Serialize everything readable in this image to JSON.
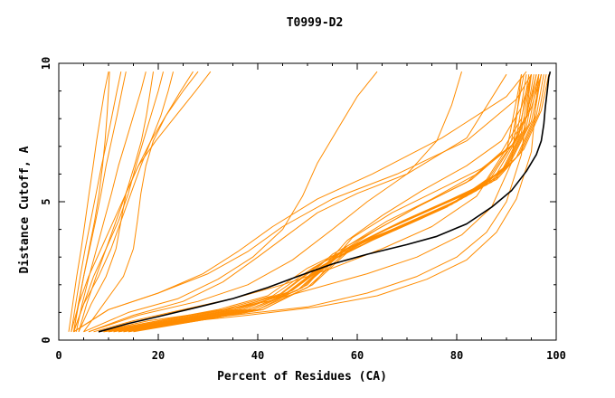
{
  "chart_data": {
    "type": "line",
    "title": "T0999-D2",
    "xlabel": "Percent of Residues (CA)",
    "ylabel": "Distance Cutoff, A",
    "xlim": [
      0,
      100
    ],
    "ylim": [
      0,
      10
    ],
    "x_ticks": [
      "0",
      "20",
      "40",
      "60",
      "80",
      "100"
    ],
    "y_ticks": [
      "0",
      "5",
      "10"
    ],
    "grid": false,
    "colors": {
      "models": "#ff8c00",
      "highlight": "#000000"
    },
    "highlight": {
      "x": [
        8,
        10,
        14,
        20,
        27,
        35,
        42,
        48,
        55,
        62,
        70,
        76,
        82,
        87,
        91,
        94,
        96,
        97,
        97.5,
        97.8,
        98.2,
        98.5,
        98.8
      ],
      "y": [
        0.3,
        0.4,
        0.6,
        0.85,
        1.15,
        1.5,
        1.9,
        2.3,
        2.75,
        3.1,
        3.45,
        3.75,
        4.2,
        4.8,
        5.4,
        6.1,
        6.7,
        7.2,
        7.8,
        8.4,
        9.0,
        9.5,
        9.7
      ]
    },
    "series": [
      {
        "x": [
          2,
          2.8,
          3.6,
          4.5,
          5.3,
          6.1,
          6.9,
          7.6,
          8.4,
          9.2,
          10.0
        ],
        "y": [
          0.3,
          1.3,
          2.3,
          3.3,
          4.3,
          5.3,
          6.3,
          7.2,
          8.1,
          9.0,
          9.7
        ]
      },
      {
        "x": [
          2.5,
          3.4,
          4.3,
          5.3,
          6.4,
          7.5,
          8.6,
          9.7,
          10.7,
          11.7,
          12.5
        ],
        "y": [
          0.3,
          1.3,
          2.3,
          3.3,
          4.3,
          5.3,
          6.3,
          7.2,
          8.1,
          9.0,
          9.7
        ]
      },
      {
        "x": [
          3,
          3.9,
          5.0,
          6.2,
          7.4,
          8.5,
          9.5,
          10.6,
          11.7,
          12.7,
          13.5
        ],
        "y": [
          0.3,
          1.3,
          2.3,
          3.3,
          4.3,
          5.3,
          6.3,
          7.2,
          8.1,
          9.0,
          9.7
        ]
      },
      {
        "x": [
          3.5,
          4.7,
          6.1,
          7.6,
          9.1,
          10.6,
          12.0,
          13.5,
          15.0,
          16.5,
          17.5
        ],
        "y": [
          0.3,
          1.3,
          2.3,
          3.3,
          4.3,
          5.3,
          6.3,
          7.2,
          8.1,
          9.0,
          9.7
        ]
      },
      {
        "x": [
          3,
          4.0,
          5.0,
          6.1,
          7.2,
          8.1,
          8.8,
          9.3,
          9.7,
          10.0,
          10.2
        ],
        "y": [
          0.3,
          1.3,
          2.3,
          3.3,
          4.3,
          5.3,
          6.3,
          7.2,
          8.1,
          9.0,
          9.7
        ]
      },
      {
        "x": [
          4,
          5.6,
          7.5,
          9.5,
          11.5,
          13.5,
          15.2,
          16.6,
          17.6,
          18.4,
          19.0
        ],
        "y": [
          0.3,
          1.3,
          2.3,
          3.3,
          4.3,
          5.3,
          6.3,
          7.2,
          8.1,
          9.0,
          9.7
        ]
      },
      {
        "x": [
          3,
          5.0,
          8.0,
          10.5,
          12.5,
          14.5,
          16.5,
          18.5,
          20.5,
          22.0,
          23.0
        ],
        "y": [
          0.3,
          1.3,
          2.3,
          3.3,
          4.3,
          5.3,
          6.3,
          7.2,
          8.1,
          9.0,
          9.7
        ]
      },
      {
        "x": [
          2.5,
          4.0,
          6.0,
          8.5,
          11.0,
          13.5,
          16.0,
          18.5,
          21.5,
          24.5,
          27.0
        ],
        "y": [
          0.3,
          1.3,
          2.3,
          3.3,
          4.3,
          5.3,
          6.3,
          7.2,
          8.1,
          9.0,
          9.7
        ]
      },
      {
        "x": [
          4,
          6.5,
          9.5,
          11.5,
          12.5,
          13.5,
          16.0,
          19.5,
          23.5,
          27.5,
          30.5
        ],
        "y": [
          0.3,
          1.3,
          2.3,
          3.3,
          4.3,
          5.3,
          6.3,
          7.2,
          8.1,
          9.0,
          9.7
        ]
      },
      {
        "x": [
          5,
          9.0,
          13.0,
          15.0,
          15.8,
          16.5,
          17.5,
          19.0,
          21.5,
          25.0,
          28.0
        ],
        "y": [
          0.3,
          1.3,
          2.3,
          3.3,
          4.3,
          5.3,
          6.3,
          7.2,
          8.1,
          9.0,
          9.7
        ]
      },
      {
        "x": [
          3,
          5.0,
          7.0,
          9.5,
          12.0,
          14.0,
          15.5,
          17.0,
          18.5,
          20.0,
          21.0
        ],
        "y": [
          0.3,
          1.3,
          2.3,
          3.3,
          4.3,
          5.3,
          6.3,
          7.2,
          8.1,
          9.0,
          9.7
        ]
      },
      {
        "x": [
          3,
          10,
          20,
          30,
          38,
          45,
          55,
          68,
          82,
          92,
          95
        ],
        "y": [
          0.3,
          1.1,
          1.7,
          2.4,
          3.2,
          4.1,
          5.1,
          6.0,
          7.2,
          8.7,
          9.6
        ]
      },
      {
        "x": [
          3,
          10,
          20,
          29,
          36,
          43,
          52,
          63,
          77,
          90,
          94
        ],
        "y": [
          0.3,
          1.1,
          1.7,
          2.4,
          3.2,
          4.1,
          5.1,
          6.0,
          7.3,
          8.8,
          9.7
        ]
      },
      {
        "x": [
          5,
          14,
          24,
          32,
          39,
          45,
          49,
          52,
          56,
          60,
          64
        ],
        "y": [
          0.3,
          1.0,
          1.5,
          2.2,
          3.0,
          4.0,
          5.2,
          6.4,
          7.6,
          8.8,
          9.7
        ]
      },
      {
        "x": [
          6,
          16,
          28,
          38,
          47,
          55,
          62,
          70,
          76,
          79,
          81
        ],
        "y": [
          0.3,
          0.9,
          1.4,
          2.0,
          2.9,
          4.0,
          5.0,
          6.0,
          7.2,
          8.5,
          9.7
        ]
      },
      {
        "x": [
          6,
          15,
          25,
          33,
          40,
          46,
          52,
          60,
          70,
          82,
          90
        ],
        "y": [
          0.3,
          0.9,
          1.4,
          2.1,
          3.0,
          3.8,
          4.6,
          5.3,
          6.0,
          7.3,
          9.6
        ]
      },
      {
        "x": [
          7,
          15,
          25,
          35,
          45,
          55,
          65,
          75,
          84,
          90,
          93
        ],
        "y": [
          0.3,
          0.7,
          1.1,
          1.5,
          2.0,
          2.6,
          3.3,
          4.1,
          5.2,
          6.8,
          9.6
        ]
      },
      {
        "x": [
          8,
          18,
          30,
          42,
          52,
          62,
          72,
          81,
          87,
          91,
          93
        ],
        "y": [
          0.3,
          0.7,
          1.0,
          1.4,
          1.9,
          2.4,
          3.0,
          3.8,
          4.8,
          6.4,
          9.6
        ]
      },
      {
        "x": [
          8,
          20,
          35,
          50,
          62,
          72,
          80,
          86,
          90,
          93,
          95
        ],
        "y": [
          0.3,
          0.6,
          0.9,
          1.2,
          1.7,
          2.3,
          3.0,
          3.9,
          5.0,
          6.7,
          9.6
        ]
      },
      {
        "x": [
          9,
          22,
          38,
          52,
          64,
          74,
          82,
          88,
          92,
          95,
          96.5
        ],
        "y": [
          0.3,
          0.6,
          0.9,
          1.2,
          1.6,
          2.2,
          2.9,
          3.9,
          5.1,
          6.8,
          9.6
        ]
      },
      {
        "x": [
          8,
          20,
          32,
          42,
          50,
          58,
          68,
          78,
          86,
          91,
          93.5
        ],
        "y": [
          0.3,
          0.7,
          1.1,
          1.6,
          2.6,
          3.3,
          4.0,
          4.8,
          5.8,
          7.2,
          9.6
        ]
      },
      {
        "x": [
          8,
          20,
          33,
          43,
          51,
          59,
          69,
          79,
          87,
          92,
          94
        ],
        "y": [
          0.3,
          0.7,
          1.1,
          1.6,
          2.6,
          3.4,
          4.1,
          4.9,
          5.9,
          7.3,
          9.6
        ]
      },
      {
        "x": [
          9,
          21,
          34,
          44,
          52,
          60,
          70,
          80,
          88,
          92.5,
          94.5
        ],
        "y": [
          0.3,
          0.7,
          1.1,
          1.6,
          2.7,
          3.5,
          4.2,
          5.0,
          6.0,
          7.4,
          9.6
        ]
      },
      {
        "x": [
          9,
          22,
          35,
          45,
          53,
          61,
          71,
          81,
          89,
          93,
          95
        ],
        "y": [
          0.3,
          0.7,
          1.1,
          1.6,
          2.7,
          3.5,
          4.3,
          5.1,
          6.1,
          7.5,
          9.6
        ]
      },
      {
        "x": [
          10,
          22,
          35,
          45,
          53,
          62,
          72,
          82,
          89.5,
          93.5,
          95.5
        ],
        "y": [
          0.3,
          0.7,
          1.1,
          1.7,
          2.8,
          3.6,
          4.4,
          5.2,
          6.2,
          7.6,
          9.6
        ]
      },
      {
        "x": [
          10,
          23,
          36,
          46,
          54,
          63,
          73,
          83,
          90,
          94,
          96
        ],
        "y": [
          0.3,
          0.7,
          1.1,
          1.7,
          2.8,
          3.6,
          4.4,
          5.3,
          6.3,
          7.7,
          9.6
        ]
      },
      {
        "x": [
          10,
          23,
          36,
          46,
          55,
          64,
          74,
          84,
          90.5,
          94.5,
          96.5
        ],
        "y": [
          0.3,
          0.7,
          1.1,
          1.7,
          2.9,
          3.7,
          4.5,
          5.4,
          6.4,
          7.8,
          9.6
        ]
      },
      {
        "x": [
          11,
          24,
          37,
          47,
          56,
          65,
          75,
          85,
          91,
          95,
          97
        ],
        "y": [
          0.3,
          0.7,
          1.1,
          1.8,
          3.0,
          3.8,
          4.6,
          5.5,
          6.5,
          7.9,
          9.6
        ]
      },
      {
        "x": [
          11,
          24,
          37,
          47,
          55,
          63,
          72,
          82,
          89,
          93,
          95
        ],
        "y": [
          0.3,
          0.7,
          1.1,
          1.8,
          3.1,
          3.9,
          4.8,
          5.7,
          6.8,
          8.0,
          9.6
        ]
      },
      {
        "x": [
          12,
          25,
          38,
          48,
          56,
          64,
          73,
          83,
          90,
          94,
          96
        ],
        "y": [
          0.3,
          0.7,
          1.1,
          1.8,
          3.1,
          4.0,
          4.9,
          5.8,
          6.9,
          8.1,
          9.6
        ]
      },
      {
        "x": [
          12,
          25,
          38,
          48,
          57,
          66,
          76,
          86,
          92,
          95.5,
          97
        ],
        "y": [
          0.3,
          0.7,
          1.1,
          1.8,
          3.2,
          4.0,
          4.8,
          5.6,
          6.6,
          8.0,
          9.6
        ]
      },
      {
        "x": [
          12,
          26,
          39,
          49,
          58,
          67,
          77,
          87,
          92.5,
          96,
          97.5
        ],
        "y": [
          0.3,
          0.7,
          1.1,
          1.9,
          3.3,
          4.1,
          4.9,
          5.7,
          6.7,
          8.1,
          9.6
        ]
      },
      {
        "x": [
          13,
          26,
          39,
          49,
          58,
          66,
          75,
          84,
          91,
          94.5,
          96.5
        ],
        "y": [
          0.3,
          0.7,
          1.1,
          1.9,
          3.4,
          4.3,
          5.1,
          6.0,
          7.0,
          8.3,
          9.6
        ]
      },
      {
        "x": [
          13,
          27,
          40,
          50,
          59,
          68,
          78,
          88,
          93,
          96.5,
          98
        ],
        "y": [
          0.3,
          0.7,
          1.1,
          1.9,
          3.4,
          4.2,
          5.0,
          5.8,
          6.8,
          8.2,
          9.6
        ]
      },
      {
        "x": [
          14,
          27,
          40,
          50,
          58,
          65,
          73,
          82,
          89,
          93,
          95
        ],
        "y": [
          0.3,
          0.7,
          1.1,
          2.0,
          3.6,
          4.5,
          5.4,
          6.3,
          7.2,
          8.4,
          9.6
        ]
      },
      {
        "x": [
          14,
          28,
          41,
          51,
          60,
          69,
          79,
          88.5,
          93.5,
          97,
          98.5
        ],
        "y": [
          0.3,
          0.7,
          1.1,
          2.0,
          3.5,
          4.3,
          5.1,
          5.9,
          6.9,
          8.3,
          9.6
        ]
      },
      {
        "x": [
          15,
          28,
          41,
          51,
          59,
          67,
          76,
          85,
          91.5,
          95,
          97
        ],
        "y": [
          0.3,
          0.7,
          1.1,
          2.0,
          3.7,
          4.6,
          5.4,
          6.2,
          7.1,
          8.4,
          9.6
        ]
      }
    ]
  }
}
